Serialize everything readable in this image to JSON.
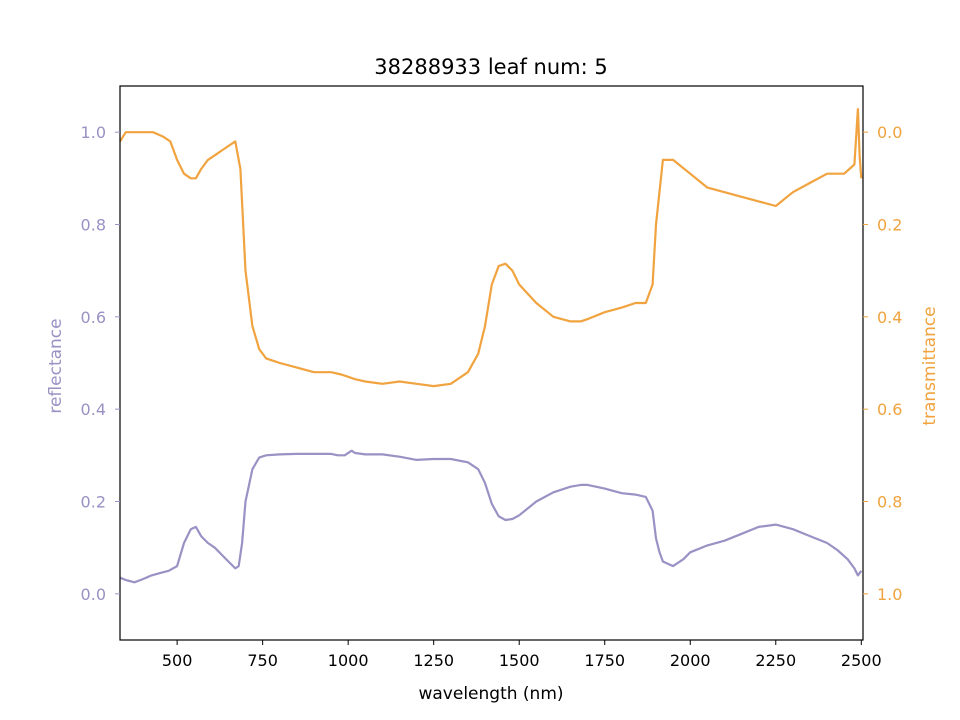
{
  "chart_data": {
    "type": "line",
    "title": "38288933 leaf num: 5",
    "xlabel": "wavelength (nm)",
    "ylabel_left": "reflectance",
    "ylabel_right": "transmittance",
    "xlim": [
      333,
      2505
    ],
    "ylim_left": [
      -0.1,
      1.1
    ],
    "ylim_right": [
      1.1,
      -0.1
    ],
    "right_axis_inverted": true,
    "x_ticks": [
      500,
      750,
      1000,
      1250,
      1500,
      1750,
      2000,
      2250,
      2500
    ],
    "y_ticks_left": [
      0.0,
      0.2,
      0.4,
      0.6,
      0.8,
      1.0
    ],
    "y_ticks_right": [
      0.0,
      0.2,
      0.4,
      0.6,
      0.8,
      1.0
    ],
    "grid": false,
    "colors": {
      "reflectance": "#9a91c4",
      "transmittance": "#f0a33e",
      "axis": "#000000"
    },
    "series": [
      {
        "axis": "left",
        "x": [
          333,
          350,
          375,
          400,
          425,
          450,
          475,
          500,
          520,
          540,
          555,
          570,
          590,
          610,
          630,
          650,
          670,
          680,
          690,
          700,
          720,
          740,
          760,
          800,
          850,
          900,
          950,
          970,
          990,
          1010,
          1020,
          1050,
          1100,
          1150,
          1200,
          1250,
          1300,
          1350,
          1380,
          1400,
          1420,
          1440,
          1460,
          1480,
          1500,
          1550,
          1600,
          1650,
          1680,
          1700,
          1750,
          1800,
          1840,
          1870,
          1890,
          1900,
          1910,
          1920,
          1950,
          1980,
          2000,
          2050,
          2100,
          2150,
          2200,
          2250,
          2300,
          2350,
          2400,
          2430,
          2460,
          2480,
          2490,
          2500
        ],
        "y": [
          0.035,
          0.03,
          0.025,
          0.032,
          0.04,
          0.045,
          0.05,
          0.06,
          0.11,
          0.14,
          0.145,
          0.125,
          0.11,
          0.1,
          0.085,
          0.07,
          0.055,
          0.06,
          0.11,
          0.2,
          0.27,
          0.295,
          0.3,
          0.302,
          0.303,
          0.303,
          0.303,
          0.3,
          0.3,
          0.31,
          0.305,
          0.302,
          0.302,
          0.297,
          0.29,
          0.292,
          0.292,
          0.285,
          0.27,
          0.24,
          0.195,
          0.168,
          0.16,
          0.162,
          0.17,
          0.2,
          0.22,
          0.232,
          0.236,
          0.236,
          0.228,
          0.218,
          0.215,
          0.21,
          0.18,
          0.12,
          0.09,
          0.07,
          0.06,
          0.075,
          0.09,
          0.105,
          0.115,
          0.13,
          0.145,
          0.15,
          0.14,
          0.125,
          0.11,
          0.095,
          0.075,
          0.055,
          0.04,
          0.05
        ]
      },
      {
        "axis": "right",
        "x": [
          333,
          350,
          370,
          400,
          430,
          460,
          480,
          500,
          520,
          540,
          555,
          570,
          590,
          610,
          630,
          650,
          670,
          685,
          700,
          720,
          740,
          760,
          780,
          800,
          850,
          900,
          950,
          980,
          1000,
          1020,
          1050,
          1100,
          1150,
          1200,
          1250,
          1300,
          1350,
          1380,
          1400,
          1420,
          1440,
          1460,
          1480,
          1500,
          1550,
          1600,
          1650,
          1680,
          1700,
          1750,
          1800,
          1840,
          1870,
          1890,
          1900,
          1920,
          1950,
          2000,
          2050,
          2100,
          2150,
          2200,
          2250,
          2300,
          2350,
          2400,
          2450,
          2480,
          2490,
          2495,
          2500
        ],
        "y": [
          0.02,
          0.0,
          0.0,
          0.0,
          0.0,
          0.01,
          0.02,
          0.06,
          0.09,
          0.1,
          0.1,
          0.08,
          0.06,
          0.05,
          0.04,
          0.03,
          0.02,
          0.08,
          0.3,
          0.42,
          0.47,
          0.49,
          0.495,
          0.5,
          0.51,
          0.52,
          0.52,
          0.525,
          0.53,
          0.535,
          0.54,
          0.545,
          0.54,
          0.545,
          0.55,
          0.545,
          0.52,
          0.48,
          0.42,
          0.33,
          0.29,
          0.285,
          0.3,
          0.33,
          0.37,
          0.4,
          0.41,
          0.41,
          0.405,
          0.39,
          0.38,
          0.37,
          0.37,
          0.33,
          0.2,
          0.06,
          0.06,
          0.09,
          0.12,
          0.13,
          0.14,
          0.15,
          0.16,
          0.13,
          0.11,
          0.09,
          0.09,
          0.07,
          -0.05,
          0.05,
          0.1
        ]
      }
    ]
  }
}
